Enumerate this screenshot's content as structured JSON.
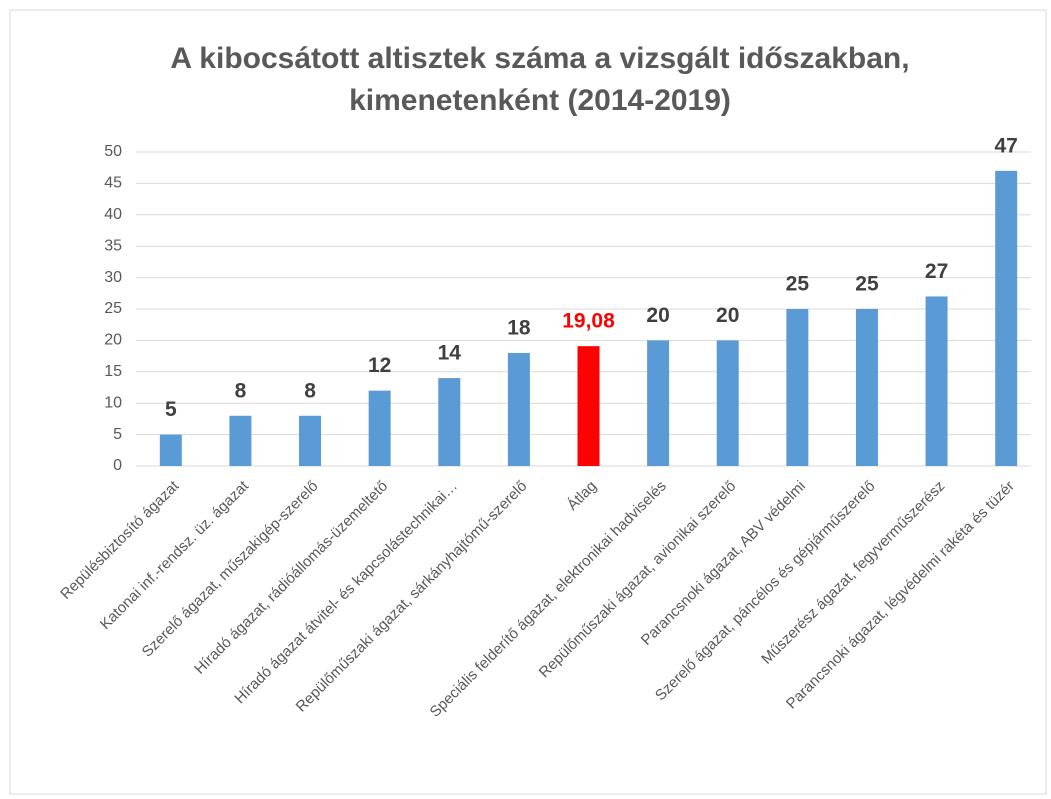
{
  "chart_data": {
    "type": "bar",
    "title": [
      "A kibocsátott altisztek száma a vizsgált időszakban,",
      "kimenetenként (2014-2019)"
    ],
    "categories": [
      "Repülésbiztosító ágazat",
      "Katonai inf.-rendsz. üz. ágazat",
      "Szerelő ágazat, műszakigép-szerelő",
      "Híradó ágazat, rádióállomás-üzemeltető",
      "Híradó ágazat átvitel- és kapcsolástechnikai…",
      "Repülőműszaki ágazat, sárkányhajtómű-szerelő",
      "Átlag",
      "Speciális felderítő ágazat, elektronikai hadviselés",
      "Repülőműszaki ágazat, avionikai szerelő",
      "Parancsnoki ágazat, ABV védelmi",
      "Szerelő ágazat, páncélos és gépjárműszerelő",
      "Műszerész ágazat, fegyverműszerész",
      "Parancsnoki ágazat, légvédelmi rakéta és tüzér"
    ],
    "values": [
      5,
      8,
      8,
      12,
      14,
      18,
      19.08,
      20,
      20,
      25,
      25,
      27,
      47
    ],
    "value_labels": [
      "5",
      "8",
      "8",
      "12",
      "14",
      "18",
      "19,08",
      "20",
      "20",
      "25",
      "25",
      "27",
      "47"
    ],
    "colors": [
      "#5b9bd5",
      "#5b9bd5",
      "#5b9bd5",
      "#5b9bd5",
      "#5b9bd5",
      "#5b9bd5",
      "#ff0000",
      "#5b9bd5",
      "#5b9bd5",
      "#5b9bd5",
      "#5b9bd5",
      "#5b9bd5",
      "#5b9bd5"
    ],
    "ylim": [
      0,
      50
    ],
    "yticks": [
      0,
      5,
      10,
      15,
      20,
      25,
      30,
      35,
      40,
      45,
      50
    ],
    "grid": true
  }
}
